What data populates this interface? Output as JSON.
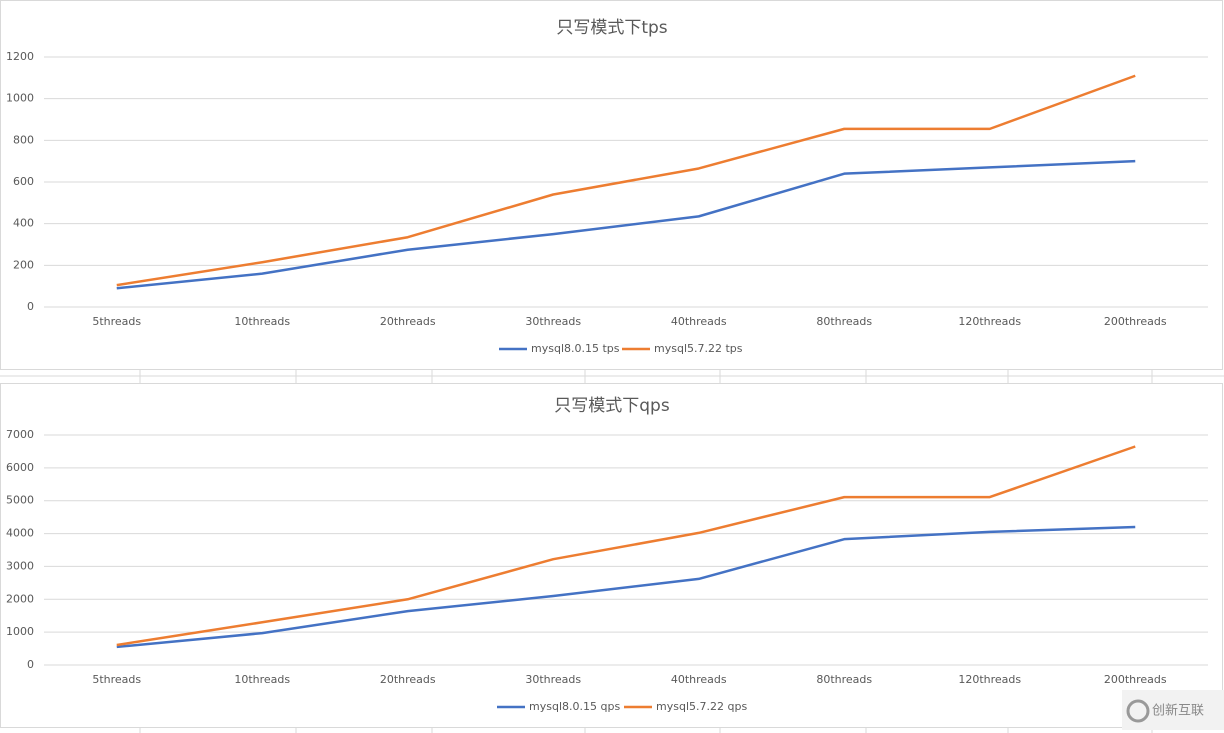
{
  "chart_data": [
    {
      "type": "line",
      "title": "只写模式下tps",
      "categories": [
        "5threads",
        "10threads",
        "20threads",
        "30threads",
        "40threads",
        "80threads",
        "120threads",
        "200threads"
      ],
      "series": [
        {
          "name": "mysql8.0.15 tps",
          "color": "#4472c4",
          "values": [
            90,
            160,
            275,
            350,
            435,
            640,
            670,
            700
          ]
        },
        {
          "name": "mysql5.7.22 tps",
          "color": "#ed7d31",
          "values": [
            105,
            215,
            335,
            540,
            665,
            855,
            855,
            1110
          ]
        }
      ],
      "ylim": [
        0,
        1200
      ],
      "yticks": [
        0,
        200,
        400,
        600,
        800,
        1000,
        1200
      ],
      "grid": true,
      "legend": "bottom"
    },
    {
      "type": "line",
      "title": "只写模式下qps",
      "categories": [
        "5threads",
        "10threads",
        "20threads",
        "30threads",
        "40threads",
        "80threads",
        "120threads",
        "200threads"
      ],
      "series": [
        {
          "name": "mysql8.0.15 qps",
          "color": "#4472c4",
          "values": [
            550,
            970,
            1640,
            2100,
            2620,
            3830,
            4050,
            4200
          ]
        },
        {
          "name": "mysql5.7.22 qps",
          "color": "#ed7d31",
          "values": [
            610,
            1300,
            2000,
            3220,
            4020,
            5110,
            5110,
            6650
          ]
        }
      ],
      "ylim": [
        0,
        7000
      ],
      "yticks": [
        0,
        1000,
        2000,
        3000,
        4000,
        5000,
        6000,
        7000
      ],
      "grid": true,
      "legend": "bottom"
    }
  ],
  "watermark": "创新互联"
}
